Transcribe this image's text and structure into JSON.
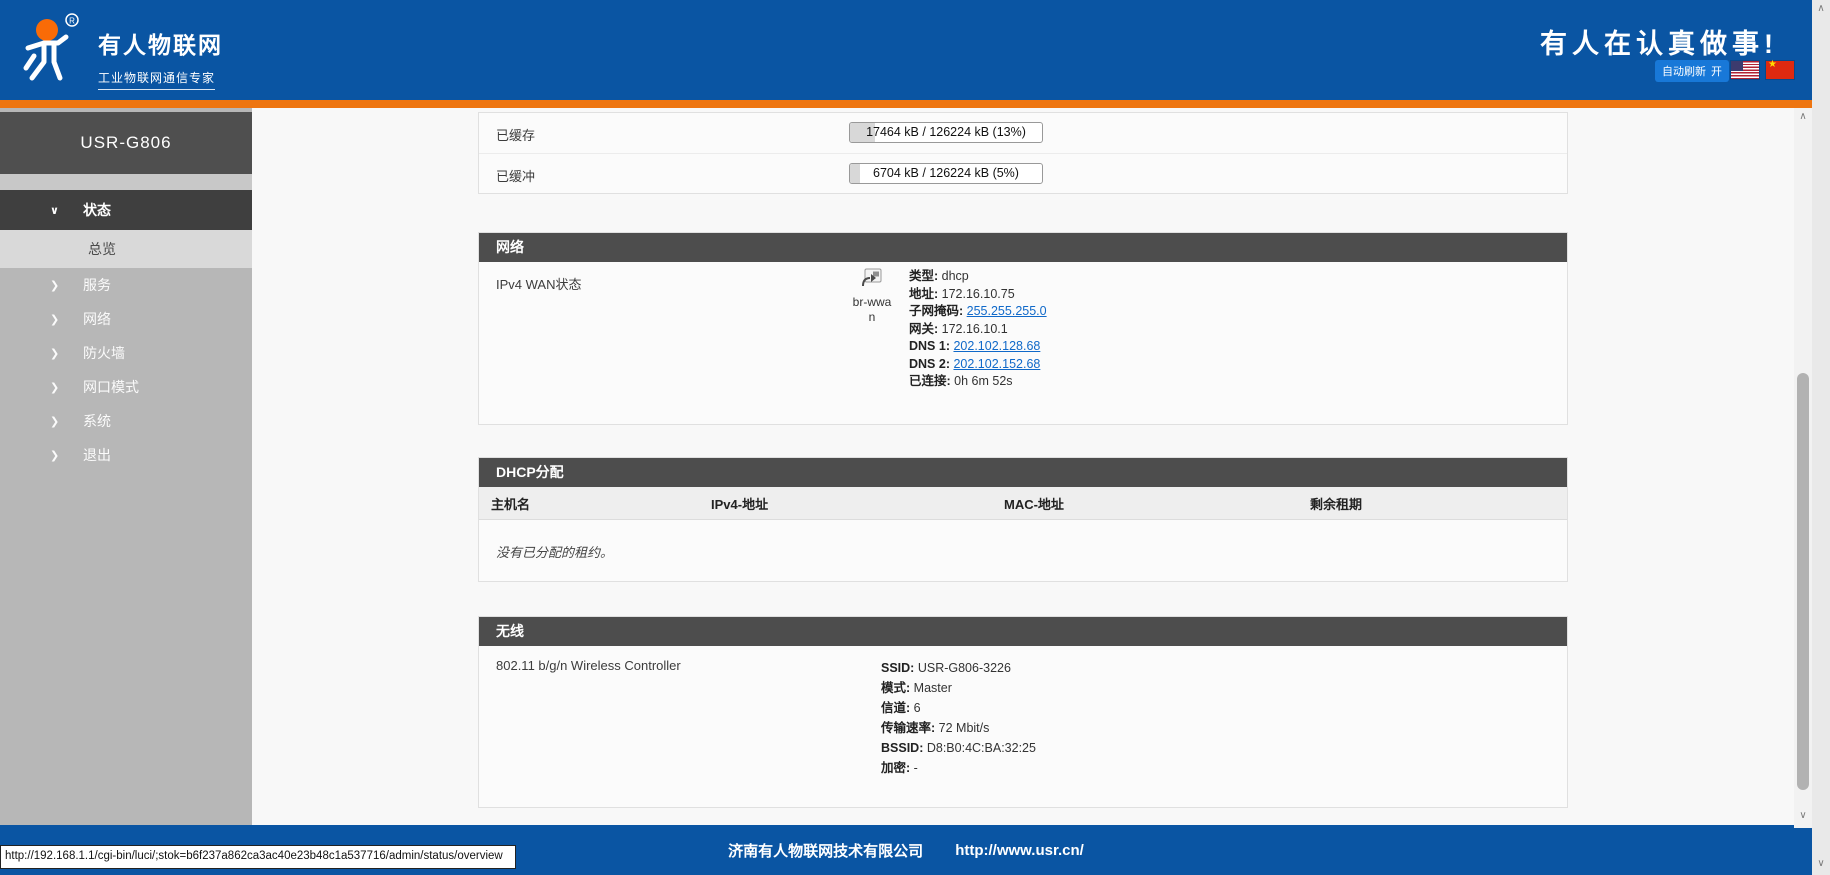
{
  "colors": {
    "header_blue": "#0a55a3",
    "accent_orange": "#ee7510",
    "button_blue": "#1878d8",
    "section_header": "#4d4d4d",
    "link_blue": "#1069c9",
    "sidebar_gray": "#b7b7b7"
  },
  "icons": {
    "chevron_down": "∨",
    "chevron_right": "❯",
    "chevron_up_small": "∧",
    "chevron_down_small": "∨",
    "registered": "®",
    "star": "★"
  },
  "header": {
    "logo_title": "有人物联网",
    "logo_subtitle": "工业物联网通信专家",
    "slogan": "有人在认真做事!",
    "autorefresh_label": "自动刷新",
    "autorefresh_state": "开"
  },
  "sidebar": {
    "device": "USR-G806",
    "menu": {
      "status": "状态",
      "overview": "总览",
      "services": "服务",
      "network": "网络",
      "firewall": "防火墙",
      "port_mode": "网口模式",
      "system": "系统",
      "logout": "退出"
    }
  },
  "memory": {
    "rows": [
      {
        "label": "已缓存",
        "value": "17464 kB / 126224 kB (13%)",
        "percent": 13
      },
      {
        "label": "已缓冲",
        "value": "6704 kB / 126224 kB (5%)",
        "percent": 5
      }
    ]
  },
  "network": {
    "title": "网络",
    "row_label": "IPv4 WAN状态",
    "interface": "br-wwan",
    "details": [
      {
        "label": "类型:",
        "value": "dhcp"
      },
      {
        "label": "地址:",
        "value": "172.16.10.75"
      },
      {
        "label": "子网掩码:",
        "value": "255.255.255.0"
      },
      {
        "label": "网关:",
        "value": "172.16.10.1"
      },
      {
        "label": "DNS 1:",
        "value": "202.102.128.68"
      },
      {
        "label": "DNS 2:",
        "value": "202.102.152.68"
      },
      {
        "label": "已连接:",
        "value": "0h 6m 52s"
      }
    ]
  },
  "dhcp": {
    "title": "DHCP分配",
    "columns": [
      "主机名",
      "IPv4-地址",
      "MAC-地址",
      "剩余租期"
    ],
    "empty": "没有已分配的租约。"
  },
  "wireless": {
    "title": "无线",
    "row_label": "802.11 b/g/n Wireless Controller",
    "details": [
      {
        "label": "SSID:",
        "value": "USR-G806-3226"
      },
      {
        "label": "模式:",
        "value": "Master"
      },
      {
        "label": "信道:",
        "value": "6"
      },
      {
        "label": "传输速率:",
        "value": "72 Mbit/s"
      },
      {
        "label": "BSSID:",
        "value": "D8:B0:4C:BA:32:25"
      },
      {
        "label": "加密:",
        "value": "-"
      }
    ]
  },
  "footer": {
    "company": "济南有人物联网技术有限公司",
    "url": "http://www.usr.cn/"
  },
  "statusbar": {
    "url": "http://192.168.1.1/cgi-bin/luci/;stok=b6f237a862ca3ac40e23b48c1a537716/admin/status/overview"
  }
}
